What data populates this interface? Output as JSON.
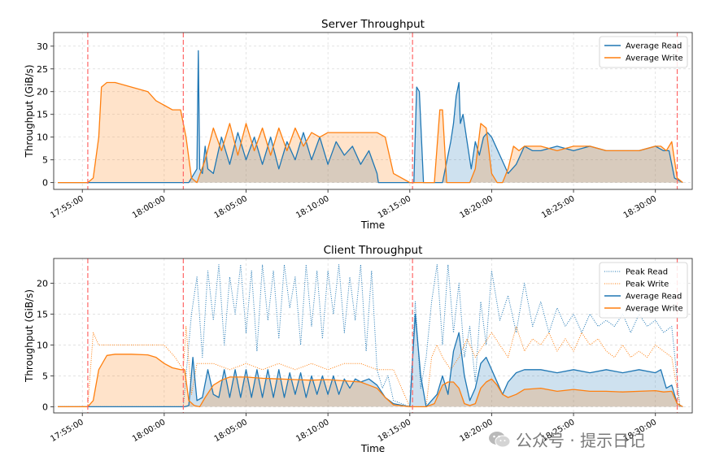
{
  "chart_data": [
    {
      "type": "area",
      "title": "Server Throughput",
      "xlabel": "Time",
      "ylabel": "Throughput (GiB/s)",
      "x_unit": "clock time",
      "xlim": [
        "17:53:15",
        "18:32:15"
      ],
      "ylim": [
        -1.5,
        33
      ],
      "xticks": [
        "17:55:00",
        "18:00:00",
        "18:05:00",
        "18:10:00",
        "18:15:00",
        "18:20:00",
        "18:25:00",
        "18:30:00"
      ],
      "yticks": [
        0,
        5,
        10,
        15,
        20,
        25,
        30
      ],
      "grid": true,
      "legend_position": "top-right",
      "vlines": [
        "17:55:20",
        "18:01:10",
        "18:15:10",
        "18:31:20"
      ],
      "series": [
        {
          "name": "Average Read",
          "color": "#1f77b4",
          "x": [
            "17:53:30",
            "17:55:30",
            "18:00:30",
            "18:01:30",
            "18:02:00",
            "18:02:05",
            "18:02:10",
            "18:02:20",
            "18:02:30",
            "18:02:40",
            "18:03:00",
            "18:03:30",
            "18:04:00",
            "18:04:30",
            "18:05:00",
            "18:05:30",
            "18:06:00",
            "18:06:30",
            "18:07:00",
            "18:07:30",
            "18:08:00",
            "18:08:30",
            "18:09:00",
            "18:09:30",
            "18:10:00",
            "18:10:30",
            "18:11:00",
            "18:11:30",
            "18:12:00",
            "18:12:30",
            "18:13:00",
            "18:13:05",
            "18:13:30",
            "18:14:00",
            "18:15:00",
            "18:15:15",
            "18:15:25",
            "18:15:35",
            "18:15:50",
            "18:16:00",
            "18:16:10",
            "18:17:00",
            "18:17:30",
            "18:17:40",
            "18:17:50",
            "18:18:00",
            "18:18:05",
            "18:18:15",
            "18:18:30",
            "18:18:45",
            "18:19:00",
            "18:19:15",
            "18:19:30",
            "18:19:45",
            "18:20:00",
            "18:20:30",
            "18:21:00",
            "18:21:30",
            "18:22:00",
            "18:22:30",
            "18:23:00",
            "18:24:00",
            "18:25:00",
            "18:26:00",
            "18:27:00",
            "18:28:00",
            "18:29:00",
            "18:30:00",
            "18:30:30",
            "18:30:50",
            "18:31:10",
            "18:31:40"
          ],
          "values": [
            0,
            0,
            0,
            0,
            3,
            29,
            3,
            2,
            8,
            3,
            2,
            10,
            4,
            11,
            5,
            10,
            4,
            10,
            3,
            9,
            5,
            11,
            5,
            10,
            4,
            9,
            6,
            8,
            4,
            7,
            2,
            0,
            0,
            0,
            0,
            0,
            21,
            20,
            0,
            0,
            0,
            0,
            9,
            13,
            19,
            22,
            13,
            15,
            9,
            3,
            9,
            6,
            10,
            11,
            10,
            6,
            2,
            4,
            8,
            7,
            7,
            8,
            7,
            8,
            7,
            7,
            7,
            8,
            7,
            7,
            1,
            0
          ]
        },
        {
          "name": "Average Write",
          "color": "#ff7f0e",
          "x": [
            "17:53:30",
            "17:55:20",
            "17:55:40",
            "17:56:00",
            "17:56:10",
            "17:56:30",
            "17:57:00",
            "17:58:00",
            "17:59:00",
            "17:59:30",
            "18:00:00",
            "18:00:30",
            "18:01:00",
            "18:01:20",
            "18:01:40",
            "18:02:00",
            "18:02:30",
            "18:03:00",
            "18:03:30",
            "18:04:00",
            "18:04:30",
            "18:05:00",
            "18:05:30",
            "18:06:00",
            "18:06:30",
            "18:07:00",
            "18:07:30",
            "18:08:00",
            "18:08:30",
            "18:09:00",
            "18:09:30",
            "18:10:00",
            "18:11:00",
            "18:12:00",
            "18:13:00",
            "18:13:30",
            "18:14:00",
            "18:15:00",
            "18:16:00",
            "18:16:30",
            "18:16:50",
            "18:17:00",
            "18:17:15",
            "18:17:30",
            "18:18:00",
            "18:18:20",
            "18:18:40",
            "18:19:00",
            "18:19:20",
            "18:19:40",
            "18:20:00",
            "18:20:20",
            "18:20:40",
            "18:21:00",
            "18:21:20",
            "18:21:40",
            "18:22:00",
            "18:23:00",
            "18:24:00",
            "18:25:00",
            "18:26:00",
            "18:27:00",
            "18:28:00",
            "18:29:00",
            "18:30:00",
            "18:30:20",
            "18:30:40",
            "18:31:00",
            "18:31:20",
            "18:31:40"
          ],
          "values": [
            0,
            0,
            1,
            10,
            21,
            22,
            22,
            21,
            20,
            18,
            17,
            16,
            16,
            10,
            1,
            0,
            5,
            12,
            7,
            13,
            6,
            13,
            7,
            12,
            6,
            12,
            7,
            12,
            8,
            11,
            10,
            11,
            11,
            11,
            11,
            10,
            2,
            0,
            0,
            0,
            16,
            16,
            0,
            0,
            0,
            0,
            0,
            3,
            13,
            12,
            2,
            0,
            0,
            3,
            8,
            7,
            8,
            8,
            7,
            8,
            8,
            7,
            7,
            7,
            8,
            8,
            7,
            9,
            1,
            0
          ]
        }
      ]
    },
    {
      "type": "area",
      "title": "Client Throughput",
      "xlabel": "Time",
      "ylabel": "Throughput (GiB/s)",
      "x_unit": "clock time",
      "xlim": [
        "17:53:15",
        "18:32:15"
      ],
      "ylim": [
        -1,
        24
      ],
      "xticks": [
        "17:55:00",
        "18:00:00",
        "18:05:00",
        "18:10:00",
        "18:15:00",
        "18:20:00",
        "18:25:00",
        "18:30:00"
      ],
      "yticks": [
        0,
        5,
        10,
        15,
        20
      ],
      "grid": true,
      "legend_position": "top-right",
      "vlines": [
        "17:55:20",
        "18:01:10",
        "18:15:10",
        "18:31:20"
      ],
      "series": [
        {
          "name": "Peak Read",
          "style": "dotted",
          "color": "#1f77b4",
          "x": [
            "17:53:30",
            "17:55:30",
            "18:01:10",
            "18:01:40",
            "18:02:00",
            "18:02:20",
            "18:02:40",
            "18:03:00",
            "18:03:20",
            "18:03:40",
            "18:04:00",
            "18:04:20",
            "18:04:40",
            "18:05:00",
            "18:05:20",
            "18:05:40",
            "18:06:00",
            "18:06:20",
            "18:06:40",
            "18:07:00",
            "18:07:20",
            "18:07:40",
            "18:08:00",
            "18:08:20",
            "18:08:40",
            "18:09:00",
            "18:09:20",
            "18:09:40",
            "18:10:00",
            "18:10:20",
            "18:10:40",
            "18:11:00",
            "18:11:20",
            "18:11:40",
            "18:12:00",
            "18:12:20",
            "18:12:40",
            "18:13:00",
            "18:13:20",
            "18:13:40",
            "18:14:00",
            "18:15:00",
            "18:15:20",
            "18:15:40",
            "18:16:00",
            "18:16:20",
            "18:16:40",
            "18:17:00",
            "18:17:20",
            "18:17:40",
            "18:18:00",
            "18:18:20",
            "18:18:40",
            "18:19:00",
            "18:19:20",
            "18:19:40",
            "18:20:00",
            "18:20:30",
            "18:21:00",
            "18:21:30",
            "18:22:00",
            "18:22:30",
            "18:23:00",
            "18:23:30",
            "18:24:00",
            "18:24:30",
            "18:25:00",
            "18:25:30",
            "18:26:00",
            "18:26:30",
            "18:27:00",
            "18:27:30",
            "18:28:00",
            "18:28:30",
            "18:29:00",
            "18:29:30",
            "18:30:00",
            "18:30:30",
            "18:31:00",
            "18:31:30"
          ],
          "values": [
            0,
            0,
            0,
            15,
            21,
            8,
            22,
            14,
            23,
            10,
            21,
            15,
            23,
            12,
            22,
            9,
            23,
            14,
            22,
            11,
            23,
            16,
            21,
            10,
            23,
            13,
            22,
            11,
            22,
            15,
            23,
            12,
            21,
            14,
            23,
            9,
            22,
            6,
            3,
            5,
            1,
            0,
            17,
            3,
            8,
            17,
            23,
            10,
            23,
            12,
            20,
            8,
            13,
            4,
            17,
            10,
            22,
            14,
            18,
            12,
            20,
            13,
            17,
            12,
            16,
            13,
            15,
            12,
            15,
            13,
            14,
            13,
            15,
            12,
            15,
            13,
            14,
            12,
            13,
            0
          ]
        },
        {
          "name": "Peak Write",
          "style": "dotted",
          "color": "#ff7f0e",
          "x": [
            "17:53:30",
            "17:55:20",
            "17:55:40",
            "17:56:00",
            "17:57:00",
            "17:58:00",
            "17:59:00",
            "18:00:00",
            "18:00:40",
            "18:01:10",
            "18:01:20",
            "18:01:40",
            "18:02:00",
            "18:03:00",
            "18:04:00",
            "18:05:00",
            "18:06:00",
            "18:07:00",
            "18:08:00",
            "18:09:00",
            "18:10:00",
            "18:11:00",
            "18:12:00",
            "18:13:00",
            "18:14:00",
            "18:15:00",
            "18:16:00",
            "18:16:20",
            "18:16:40",
            "18:17:00",
            "18:17:30",
            "18:18:00",
            "18:18:30",
            "18:19:00",
            "18:19:30",
            "18:20:00",
            "18:20:30",
            "18:21:00",
            "18:21:30",
            "18:22:00",
            "18:22:30",
            "18:23:00",
            "18:23:30",
            "18:24:00",
            "18:24:30",
            "18:25:00",
            "18:25:30",
            "18:26:00",
            "18:26:30",
            "18:27:00",
            "18:27:30",
            "18:28:00",
            "18:28:30",
            "18:29:00",
            "18:29:30",
            "18:30:00",
            "18:30:30",
            "18:31:00",
            "18:31:30"
          ],
          "values": [
            0,
            0,
            12,
            10,
            10,
            10,
            10,
            10,
            8,
            6,
            13,
            2,
            7,
            7,
            6,
            7,
            6,
            7,
            6,
            7,
            6,
            7,
            7,
            6,
            6,
            0,
            0,
            8,
            10,
            8,
            6,
            8,
            11,
            8,
            10,
            12,
            10,
            8,
            13,
            9,
            11,
            10,
            12,
            9,
            11,
            9,
            12,
            10,
            11,
            9,
            8,
            10,
            8,
            9,
            8,
            10,
            9,
            8,
            0
          ]
        },
        {
          "name": "Average Read",
          "color": "#1f77b4",
          "x": [
            "17:53:30",
            "17:55:30",
            "18:01:15",
            "18:01:30",
            "18:01:45",
            "18:02:00",
            "18:02:20",
            "18:02:40",
            "18:03:00",
            "18:03:20",
            "18:03:40",
            "18:04:00",
            "18:04:20",
            "18:04:40",
            "18:05:00",
            "18:05:20",
            "18:05:40",
            "18:06:00",
            "18:06:20",
            "18:06:40",
            "18:07:00",
            "18:07:20",
            "18:07:40",
            "18:08:00",
            "18:08:20",
            "18:08:40",
            "18:09:00",
            "18:09:20",
            "18:09:40",
            "18:10:00",
            "18:10:20",
            "18:10:40",
            "18:11:00",
            "18:11:20",
            "18:11:40",
            "18:12:00",
            "18:12:30",
            "18:13:00",
            "18:13:30",
            "18:14:00",
            "18:15:00",
            "18:15:20",
            "18:15:40",
            "18:16:00",
            "18:16:20",
            "18:16:40",
            "18:17:00",
            "18:17:20",
            "18:17:40",
            "18:18:00",
            "18:18:20",
            "18:18:40",
            "18:19:00",
            "18:19:20",
            "18:19:40",
            "18:20:00",
            "18:20:20",
            "18:20:40",
            "18:21:00",
            "18:21:30",
            "18:22:00",
            "18:23:00",
            "18:24:00",
            "18:25:00",
            "18:26:00",
            "18:27:00",
            "18:28:00",
            "18:29:00",
            "18:30:00",
            "18:30:20",
            "18:30:40",
            "18:31:00",
            "18:31:20",
            "18:31:40"
          ],
          "values": [
            0,
            0,
            0,
            0.2,
            8,
            1,
            1.5,
            6,
            2,
            1.5,
            6,
            1.5,
            6,
            1.5,
            6,
            1.5,
            6,
            1.5,
            6,
            1.5,
            6,
            1.5,
            5.5,
            2,
            5.5,
            1.5,
            5,
            2,
            5,
            2,
            5,
            2,
            4.5,
            3,
            4.5,
            4,
            4.5,
            3.5,
            1.5,
            0.5,
            0,
            15,
            5,
            0,
            1,
            2,
            5,
            2,
            9,
            12,
            5,
            1,
            3,
            7,
            8,
            6,
            4,
            2,
            4,
            5.5,
            6,
            6,
            5.5,
            6,
            5.5,
            6,
            5.5,
            6,
            5.5,
            6,
            3,
            3.5,
            0.5,
            0
          ]
        },
        {
          "name": "Average Write",
          "color": "#ff7f0e",
          "x": [
            "17:53:30",
            "17:55:20",
            "17:55:40",
            "17:56:00",
            "17:56:30",
            "17:57:00",
            "17:58:00",
            "17:59:00",
            "17:59:30",
            "18:00:00",
            "18:00:30",
            "18:01:00",
            "18:01:15",
            "18:01:30",
            "18:01:50",
            "18:02:10",
            "18:02:30",
            "18:03:00",
            "18:03:30",
            "18:04:00",
            "18:05:00",
            "18:06:00",
            "18:07:00",
            "18:08:00",
            "18:09:00",
            "18:10:00",
            "18:11:00",
            "18:12:00",
            "18:12:30",
            "18:13:00",
            "18:13:30",
            "18:14:00",
            "18:15:00",
            "18:16:00",
            "18:16:30",
            "18:17:00",
            "18:17:20",
            "18:17:40",
            "18:18:00",
            "18:18:20",
            "18:18:40",
            "18:19:00",
            "18:19:20",
            "18:19:40",
            "18:20:00",
            "18:20:20",
            "18:20:40",
            "18:21:00",
            "18:21:30",
            "18:22:00",
            "18:23:00",
            "18:24:00",
            "18:25:00",
            "18:26:00",
            "18:27:00",
            "18:28:00",
            "18:29:00",
            "18:30:00",
            "18:30:30",
            "18:31:00",
            "18:31:20",
            "18:31:40"
          ],
          "values": [
            0,
            0,
            1,
            6,
            8.3,
            8.5,
            8.5,
            8.4,
            8,
            7,
            6.3,
            6,
            6,
            1,
            0.2,
            0,
            1.5,
            3.5,
            4.3,
            4.8,
            4.8,
            4.6,
            4.5,
            4.4,
            4.3,
            4.4,
            4.2,
            4,
            3.5,
            3,
            1.5,
            0.3,
            0,
            0,
            0.5,
            3.5,
            4,
            4,
            3,
            0.5,
            0.2,
            0.5,
            3,
            4,
            4.5,
            3.5,
            2,
            1.5,
            2,
            2.8,
            3,
            2.5,
            2.8,
            2.5,
            2.5,
            2.4,
            2.5,
            2.6,
            2.4,
            2.5,
            0.5,
            0
          ]
        }
      ]
    }
  ],
  "watermark": {
    "text": "公众号 · 提示日记",
    "icon": "wechat-logo-icon"
  }
}
